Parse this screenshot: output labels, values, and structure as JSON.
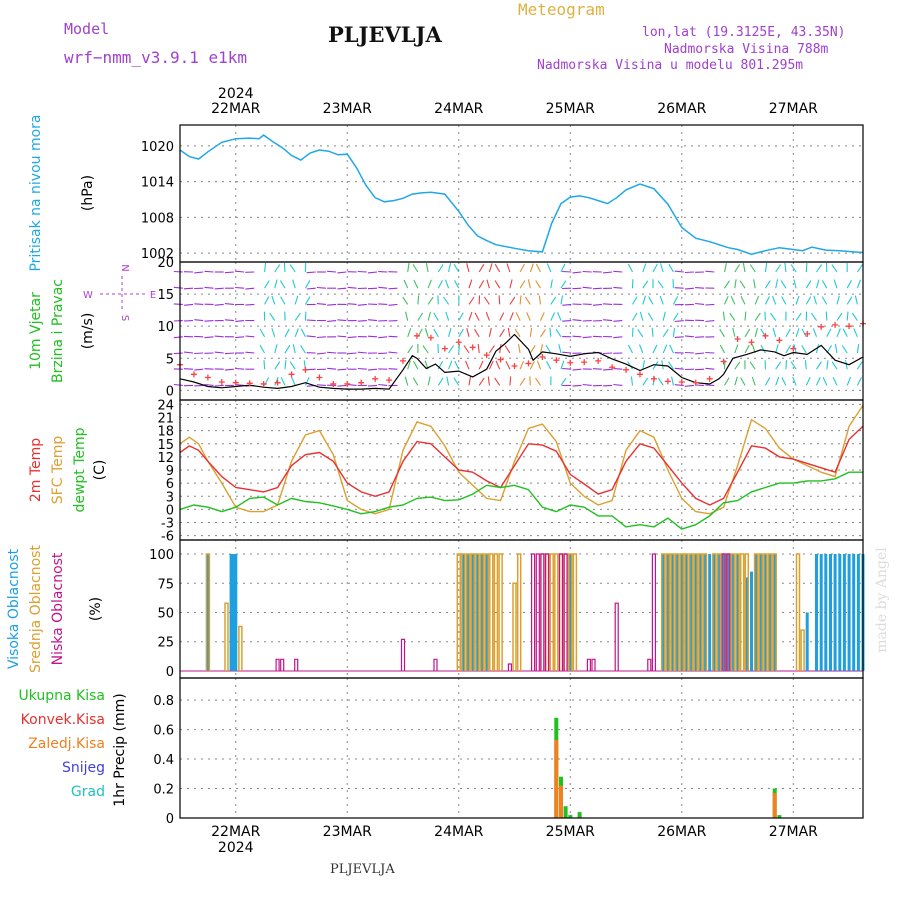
{
  "header": {
    "model_label": "Model",
    "model_name": "wrf−nmm_v3.9.1  e1km",
    "station": "PLJEVLJA",
    "product": "Meteogram",
    "coords": "lon,lat (19.3125E, 43.35N)",
    "elevation": "Nadmorska Visina 788m",
    "model_elevation": "Nadmorska Visina u modelu 801.295m",
    "footer_station": "PLJEVLJA",
    "credit": "made by Angel"
  },
  "colors": {
    "pressure": "#1fa8e6",
    "wind_label": "#20c020",
    "wind_dir": "#b040d0",
    "temp2m": "#e83030",
    "sfc": "#dba030",
    "dewpt": "#20c020",
    "high_cloud": "#1ea0e0",
    "mid_cloud": "#dba030",
    "low_cloud": "#c0148c",
    "total_precip": "#20c020",
    "conv_precip": "#e83030",
    "frozen_precip": "#f08020",
    "snow": "#4040e0",
    "graupel": "#20c0c0"
  },
  "x_axis": {
    "top_year": "2024",
    "bottom_year": "2024",
    "ticks": [
      "22MAR",
      "23MAR",
      "24MAR",
      "25MAR",
      "26MAR",
      "27MAR"
    ],
    "tick_hours": [
      12,
      36,
      60,
      84,
      108,
      132
    ],
    "range_hours": [
      0,
      147
    ]
  },
  "panel_labels": {
    "pressure": [
      "Pritisak na nivou mora"
    ],
    "pressure_unit": "(hPa)",
    "wind": [
      "10m Vjetar",
      "Brzina i Pravac"
    ],
    "wind_unit": "(m/s)",
    "compass_n": "N",
    "compass_s": "S",
    "compass_e": "E",
    "compass_w": "W",
    "temp": [
      "2m Temp",
      "SFC Temp",
      "dewpt Temp"
    ],
    "temp_unit": "(C)",
    "cloud": [
      "Visoka Oblacnost",
      "Srednja Oblacnost",
      "Niska Oblacnost"
    ],
    "cloud_unit": "(%)",
    "precip_unit": "1hr Precip (mm)",
    "precip_legend": [
      "Ukupna Kisa",
      "Konvek.Kisa",
      "Zaledj.Kisa",
      "Snijeg",
      "Grad"
    ]
  },
  "chart_data": [
    {
      "id": "pressure",
      "type": "line",
      "ylabel": "Pritisak na nivou mora (hPa)",
      "yticks": [
        1002,
        1008,
        1014,
        1020
      ],
      "ylim": [
        1000.5,
        1023.5
      ],
      "series": [
        {
          "name": "Pritisak na nivou mora",
          "x": [
            0,
            2,
            4,
            6,
            9,
            12,
            15,
            17,
            18,
            20,
            22,
            24,
            26,
            28,
            30,
            32,
            34,
            36,
            38,
            40,
            42,
            44,
            46,
            48,
            50,
            52,
            54,
            57,
            60,
            62,
            64,
            66,
            68,
            72,
            75,
            78,
            80,
            82,
            84,
            86,
            88,
            90,
            92,
            94,
            96,
            99,
            102,
            105,
            108,
            111,
            114,
            116,
            118,
            120,
            123,
            126,
            129,
            132,
            134,
            136,
            139,
            142,
            145,
            147
          ],
          "y": [
            1019.3,
            1018.2,
            1017.8,
            1019.0,
            1020.6,
            1021.2,
            1021.3,
            1021.2,
            1021.8,
            1020.7,
            1019.7,
            1018.4,
            1017.6,
            1018.8,
            1019.3,
            1019.1,
            1018.5,
            1018.6,
            1016.3,
            1013.4,
            1011.3,
            1010.6,
            1010.8,
            1011.2,
            1011.9,
            1012.1,
            1012.2,
            1011.9,
            1009.0,
            1006.7,
            1004.9,
            1004.1,
            1003.4,
            1002.8,
            1002.4,
            1002.2,
            1007.0,
            1010.3,
            1011.4,
            1011.6,
            1011.3,
            1010.8,
            1010.3,
            1011.3,
            1012.6,
            1013.6,
            1012.8,
            1010.2,
            1006.3,
            1004.5,
            1003.9,
            1003.4,
            1002.9,
            1002.6,
            1001.8,
            1002.4,
            1002.9,
            1002.6,
            1002.4,
            1003.0,
            1002.5,
            1002.4,
            1002.2,
            1002.1
          ]
        }
      ]
    },
    {
      "id": "wind",
      "type": "line",
      "ylabel": "10m Vjetar Brzina i Pravac (m/s)",
      "yticks": [
        0,
        5,
        10,
        15,
        20
      ],
      "ylim": [
        -1.5,
        20
      ],
      "series": [
        {
          "name": "wind speed",
          "x": [
            0,
            3,
            6,
            9,
            12,
            15,
            18,
            21,
            24,
            27,
            30,
            33,
            36,
            39,
            42,
            45,
            48,
            50,
            51,
            53,
            55,
            57,
            60,
            63,
            66,
            68,
            70,
            72,
            75,
            76,
            78,
            81,
            84,
            87,
            90,
            93,
            96,
            99,
            102,
            105,
            108,
            111,
            114,
            116,
            117,
            119,
            122,
            125,
            128,
            130,
            132,
            135,
            138,
            141,
            144,
            147
          ],
          "y": [
            1.8,
            1.3,
            0.6,
            0.4,
            0.6,
            0.8,
            0.5,
            0.3,
            0.6,
            1.2,
            0.5,
            0.3,
            0.2,
            0.2,
            0.3,
            0.2,
            3.2,
            5.4,
            5.0,
            3.4,
            4.1,
            2.8,
            3.0,
            2.1,
            3.3,
            6.1,
            7.3,
            8.7,
            6.4,
            4.7,
            6.0,
            5.7,
            5.3,
            5.7,
            5.9,
            4.9,
            4.1,
            3.1,
            4.0,
            3.8,
            2.0,
            1.2,
            1.0,
            1.8,
            2.5,
            5.0,
            5.6,
            6.3,
            6.0,
            5.4,
            5.9,
            5.6,
            7.0,
            4.7,
            4.0,
            5.2
          ]
        },
        {
          "name": "gust",
          "x": [
            0,
            3,
            6,
            9,
            12,
            15,
            18,
            21,
            24,
            27,
            30,
            33,
            36,
            39,
            42,
            45,
            48,
            51,
            54,
            57,
            60,
            63,
            66,
            69,
            72,
            75,
            78,
            81,
            84,
            87,
            90,
            93,
            96,
            99,
            102,
            105,
            108,
            111,
            114,
            117,
            120,
            123,
            126,
            129,
            132,
            135,
            138,
            141,
            144,
            147
          ],
          "y": [
            4.0,
            2.5,
            2.0,
            1.3,
            1.2,
            1.1,
            1.0,
            1.2,
            2.5,
            3.2,
            2.0,
            1.0,
            1.0,
            1.2,
            1.8,
            1.6,
            4.6,
            8.5,
            8.2,
            6.5,
            7.5,
            6.7,
            5.5,
            4.8,
            3.8,
            4.2,
            5.2,
            4.7,
            4.3,
            4.4,
            4.6,
            3.6,
            3.2,
            2.5,
            1.8,
            1.4,
            1.3,
            1.2,
            1.8,
            4.5,
            8.0,
            7.5,
            8.5,
            7.8,
            6.5,
            8.8,
            9.9,
            10.2,
            10.0,
            10.4
          ]
        }
      ]
    },
    {
      "id": "temperature",
      "type": "line",
      "ylabel": "(C)",
      "yticks": [
        -6,
        -3,
        0,
        3,
        6,
        9,
        12,
        15,
        18,
        21,
        24
      ],
      "ylim": [
        -7,
        25
      ],
      "series": [
        {
          "name": "2m Temp",
          "x": [
            0,
            2,
            4,
            6,
            9,
            12,
            15,
            18,
            21,
            24,
            27,
            30,
            33,
            36,
            39,
            42,
            45,
            48,
            51,
            54,
            57,
            60,
            63,
            66,
            69,
            72,
            75,
            78,
            81,
            84,
            87,
            90,
            93,
            96,
            99,
            102,
            105,
            108,
            111,
            114,
            117,
            120,
            123,
            126,
            129,
            132,
            135,
            138,
            141,
            144,
            147
          ],
          "y": [
            13.0,
            14.5,
            13.5,
            11.0,
            7.5,
            5.0,
            4.5,
            4.0,
            5.0,
            10.0,
            12.5,
            13.0,
            11.0,
            6.0,
            4.0,
            3.0,
            4.0,
            11.0,
            15.5,
            15.0,
            12.0,
            9.0,
            8.5,
            6.5,
            5.0,
            10.0,
            15.0,
            14.7,
            13.3,
            8.0,
            5.8,
            3.5,
            4.5,
            11.0,
            15.0,
            14.0,
            10.0,
            6.0,
            2.5,
            1.0,
            2.5,
            8.5,
            14.5,
            14.0,
            12.0,
            11.5,
            10.5,
            9.5,
            8.5,
            16.0,
            19.0
          ]
        },
        {
          "name": "SFC Temp",
          "x": [
            0,
            2,
            4,
            6,
            9,
            12,
            15,
            18,
            21,
            24,
            27,
            30,
            33,
            36,
            39,
            42,
            45,
            48,
            51,
            54,
            57,
            60,
            63,
            66,
            69,
            72,
            75,
            78,
            81,
            84,
            87,
            90,
            93,
            96,
            99,
            102,
            105,
            108,
            111,
            114,
            117,
            120,
            123,
            126,
            129,
            132,
            135,
            138,
            141,
            144,
            147
          ],
          "y": [
            15.0,
            16.5,
            15.0,
            11.0,
            6.0,
            0.5,
            -0.5,
            -0.5,
            1.0,
            11.0,
            17.0,
            18.0,
            12.5,
            2.0,
            0.0,
            -1.0,
            0.0,
            13.5,
            20.0,
            19.0,
            14.5,
            8.5,
            5.5,
            2.5,
            2.0,
            11.0,
            18.5,
            19.5,
            15.5,
            6.0,
            3.0,
            1.0,
            2.0,
            13.5,
            18.0,
            16.5,
            9.0,
            2.5,
            -0.5,
            -1.0,
            0.5,
            10.0,
            20.5,
            18.5,
            14.0,
            11.5,
            10.0,
            8.5,
            7.5,
            19.0,
            23.8
          ]
        },
        {
          "name": "dewpt Temp",
          "x": [
            0,
            3,
            6,
            9,
            12,
            15,
            18,
            21,
            24,
            27,
            30,
            33,
            36,
            39,
            42,
            45,
            48,
            51,
            54,
            57,
            60,
            63,
            66,
            69,
            72,
            75,
            78,
            81,
            84,
            87,
            90,
            93,
            96,
            99,
            102,
            105,
            108,
            111,
            114,
            117,
            120,
            123,
            126,
            129,
            132,
            135,
            138,
            141,
            144,
            147
          ],
          "y": [
            0.0,
            1.0,
            0.5,
            -0.5,
            0.5,
            2.5,
            2.8,
            1.0,
            2.5,
            1.8,
            1.5,
            0.8,
            0.0,
            -1.0,
            -0.5,
            0.5,
            1.0,
            2.5,
            2.8,
            2.0,
            2.2,
            3.5,
            5.5,
            5.0,
            5.5,
            4.5,
            0.5,
            -0.5,
            1.0,
            0.5,
            -1.5,
            -1.5,
            -4.0,
            -3.5,
            -4.0,
            -2.0,
            -4.5,
            -3.5,
            -1.5,
            1.5,
            2.0,
            4.0,
            5.0,
            6.0,
            6.0,
            6.5,
            6.5,
            7.0,
            8.5,
            8.5
          ]
        }
      ]
    },
    {
      "id": "cloud",
      "type": "bar",
      "ylabel": "(%)",
      "yticks": [
        0,
        25,
        50,
        75,
        100
      ],
      "ylim": [
        -6,
        112
      ],
      "series": [
        {
          "name": "Visoka Oblacnost",
          "x": [
            6,
            11,
            11.5,
            12,
            61,
            62,
            63,
            64,
            65,
            66,
            84,
            104,
            105,
            106,
            107,
            108,
            109,
            110,
            111,
            112,
            113,
            114,
            115,
            116,
            117,
            118,
            119,
            120,
            122,
            123,
            124,
            125,
            126,
            127,
            128,
            135,
            137,
            138,
            139,
            140,
            141,
            142,
            143,
            144,
            145,
            146,
            147
          ],
          "y": [
            100,
            100,
            100,
            100,
            100,
            100,
            100,
            100,
            100,
            100,
            100,
            100,
            100,
            100,
            100,
            100,
            100,
            100,
            100,
            100,
            100,
            100,
            100,
            100,
            100,
            100,
            100,
            100,
            80,
            85,
            100,
            100,
            100,
            100,
            100,
            50,
            100,
            100,
            100,
            100,
            100,
            100,
            100,
            100,
            100,
            100,
            100
          ]
        },
        {
          "name": "Srednja Oblacnost",
          "x": [
            6,
            10,
            13,
            60,
            61,
            62,
            63,
            64,
            65,
            66,
            67,
            68,
            69,
            72,
            73,
            78,
            79,
            80,
            81,
            82,
            83,
            84,
            85,
            104,
            105,
            106,
            107,
            108,
            109,
            110,
            111,
            112,
            113,
            115,
            116,
            117,
            118,
            119,
            120,
            121,
            122,
            124,
            125,
            126,
            127,
            128,
            133,
            134
          ],
          "y": [
            100,
            58,
            38,
            100,
            100,
            100,
            100,
            100,
            100,
            100,
            100,
            100,
            100,
            75,
            100,
            100,
            100,
            100,
            100,
            100,
            100,
            100,
            100,
            100,
            100,
            100,
            100,
            100,
            100,
            100,
            100,
            100,
            100,
            100,
            100,
            100,
            100,
            100,
            100,
            100,
            100,
            100,
            100,
            100,
            100,
            100,
            100,
            35
          ]
        },
        {
          "name": "Niska Oblacnost",
          "x": [
            21,
            22,
            25,
            48,
            55,
            71,
            76,
            77,
            78,
            79,
            82,
            83,
            88,
            89,
            94,
            101,
            102,
            117,
            118
          ],
          "y": [
            10,
            10,
            10,
            27,
            10,
            6,
            100,
            100,
            100,
            100,
            100,
            100,
            10,
            10,
            58,
            10,
            100,
            100,
            100
          ]
        }
      ]
    },
    {
      "id": "precip",
      "type": "bar",
      "ylabel": "1hr Precip (mm)",
      "yticks": [
        0,
        0.2,
        0.4,
        0.6,
        0.8
      ],
      "ylim": [
        0,
        0.95
      ],
      "series": [
        {
          "name": "Ukupna Kisa",
          "x": [
            81,
            82,
            83,
            84,
            86,
            128,
            129
          ],
          "y": [
            0.68,
            0.28,
            0.08,
            0.02,
            0.04,
            0.2,
            0.02
          ]
        },
        {
          "name": "Konvek.Kisa",
          "x": [
            81
          ],
          "y": [
            0.0
          ]
        },
        {
          "name": "Zaledj.Kisa",
          "x": [
            81,
            82,
            128
          ],
          "y": [
            0.53,
            0.22,
            0.17
          ]
        },
        {
          "name": "Snijeg",
          "x": [
            81
          ],
          "y": [
            0.0
          ]
        },
        {
          "name": "Grad",
          "x": [
            81
          ],
          "y": [
            0.0
          ]
        }
      ]
    }
  ]
}
